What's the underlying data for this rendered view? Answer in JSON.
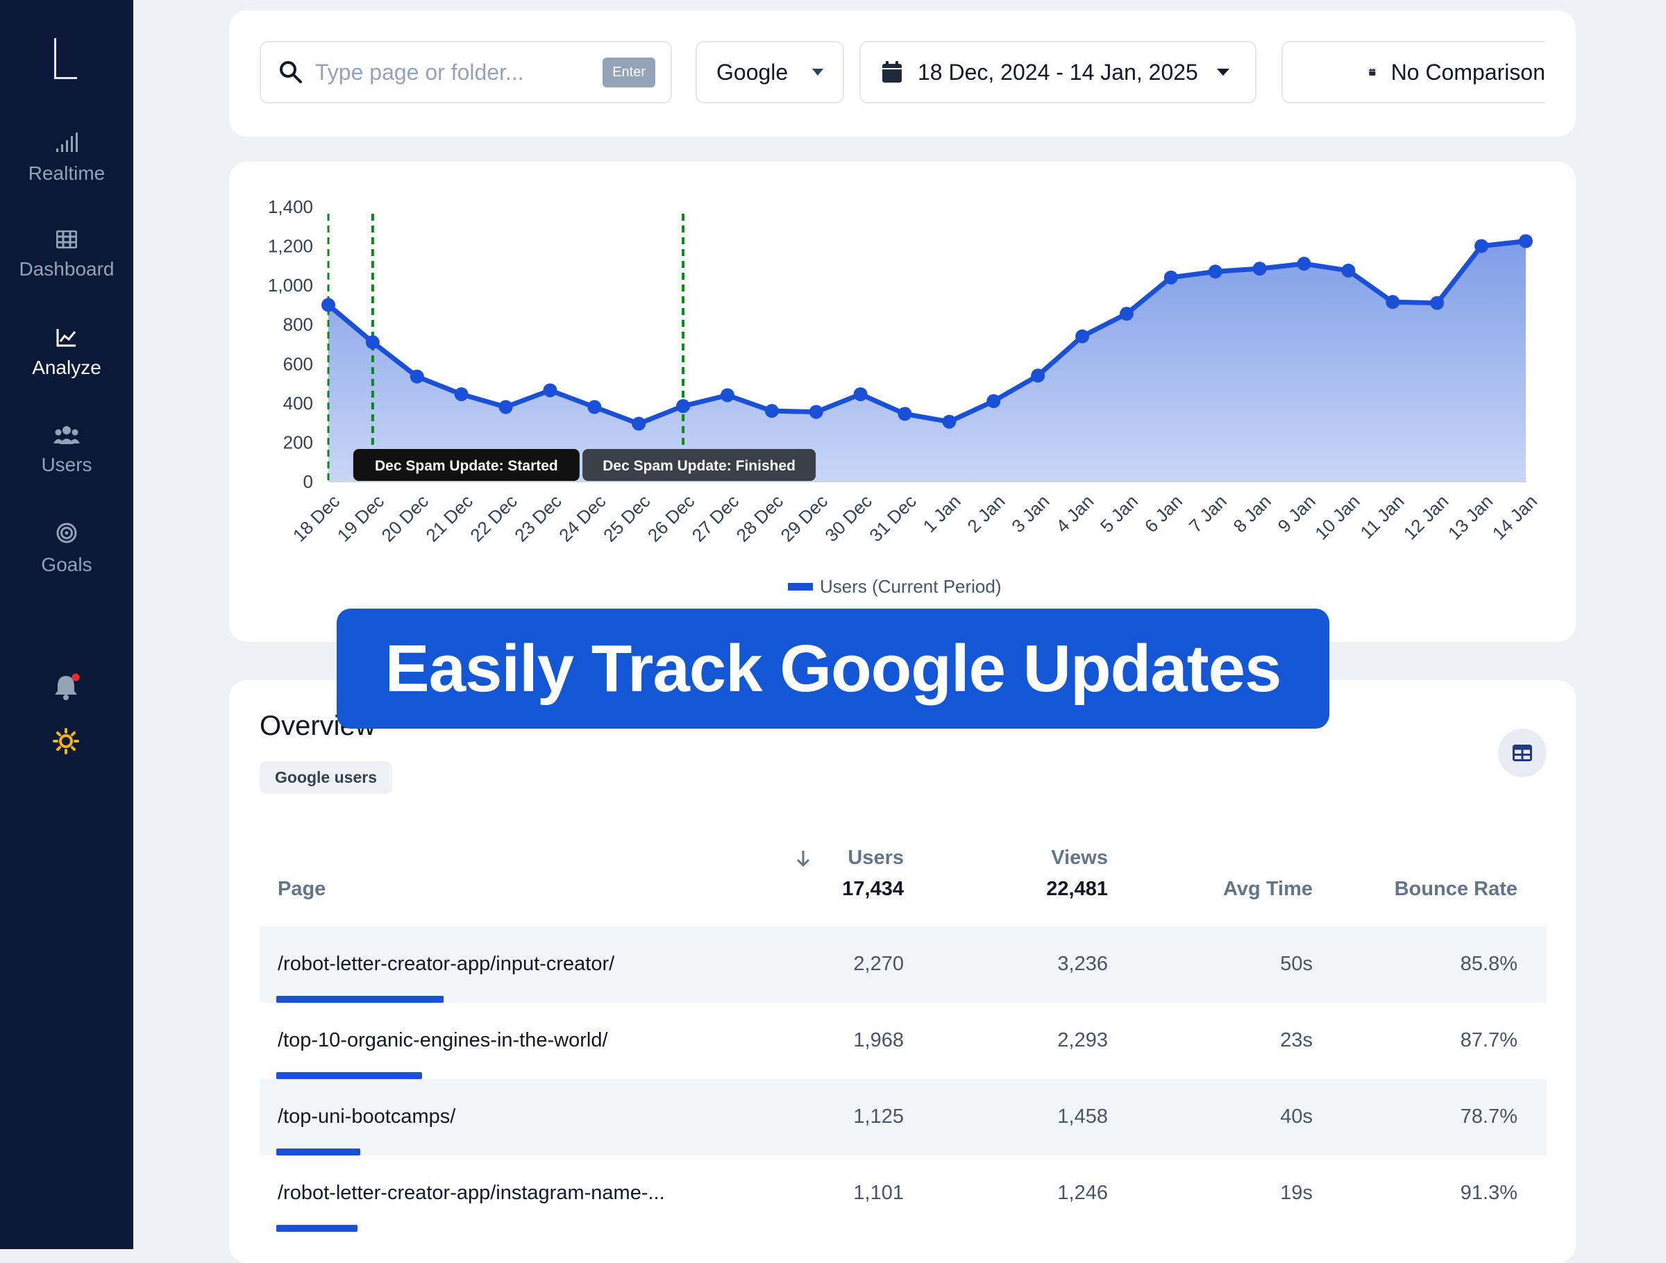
{
  "sidebar": {
    "items": [
      {
        "label": "Realtime",
        "icon": "signal-bars-icon"
      },
      {
        "label": "Dashboard",
        "icon": "grid-icon"
      },
      {
        "label": "Analyze",
        "icon": "line-chart-icon",
        "active": true
      },
      {
        "label": "Users",
        "icon": "users-icon"
      },
      {
        "label": "Goals",
        "icon": "target-icon"
      }
    ],
    "bell_icon": "bell-icon",
    "theme_icon": "sun-icon"
  },
  "toolbar": {
    "search_placeholder": "Type page or folder...",
    "search_badge": "Enter",
    "engine": "Google",
    "date_range": "18 Dec, 2024 - 14 Jan, 2025",
    "comparison": "No Comparison"
  },
  "chart_data": {
    "type": "area",
    "x": [
      "18 Dec",
      "19 Dec",
      "20 Dec",
      "21 Dec",
      "22 Dec",
      "23 Dec",
      "24 Dec",
      "25 Dec",
      "26 Dec",
      "27 Dec",
      "28 Dec",
      "29 Dec",
      "30 Dec",
      "31 Dec",
      "1 Jan",
      "2 Jan",
      "3 Jan",
      "4 Jan",
      "5 Jan",
      "6 Jan",
      "7 Jan",
      "8 Jan",
      "9 Jan",
      "10 Jan",
      "11 Jan",
      "12 Jan",
      "13 Jan",
      "14 Jan"
    ],
    "series": [
      {
        "name": "Users (Current Period)",
        "values": [
          900,
          710,
          535,
          445,
          380,
          465,
          380,
          295,
          385,
          440,
          360,
          355,
          445,
          345,
          305,
          410,
          540,
          740,
          855,
          1040,
          1070,
          1085,
          1110,
          1075,
          915,
          910,
          1200,
          1225
        ],
        "color": "#1a4fd8"
      }
    ],
    "ylim": [
      0,
      1400
    ],
    "yticks": [
      0,
      200,
      400,
      600,
      800,
      1000,
      1200,
      1400
    ],
    "ytick_labels": [
      "0",
      "200",
      "400",
      "600",
      "800",
      "1,000",
      "1,200",
      "1,400"
    ],
    "annotations": [
      {
        "label": "Dec Spam Update: Started",
        "x": "19 Dec"
      },
      {
        "label": "Dec Spam Update: Finished",
        "x": "26 Dec"
      }
    ],
    "legend_position": "bottom"
  },
  "banner": {
    "text": "Easily Track Google Updates"
  },
  "overview": {
    "title": "Overview",
    "chip": "Google users",
    "columns": {
      "page": "Page",
      "users": "Users",
      "views": "Views",
      "avg_time": "Avg Time",
      "bounce": "Bounce Rate"
    },
    "totals": {
      "users": "17,434",
      "views": "22,481"
    },
    "rows": [
      {
        "page": "/robot-letter-creator-app/input-creator/",
        "users": "2,270",
        "views": "3,236",
        "avg_time": "50s",
        "bounce": "85.8%",
        "share": 0.13
      },
      {
        "page": "/top-10-organic-engines-in-the-world/",
        "users": "1,968",
        "views": "2,293",
        "avg_time": "23s",
        "bounce": "87.7%",
        "share": 0.113
      },
      {
        "page": "/top-uni-bootcamps/",
        "users": "1,125",
        "views": "1,458",
        "avg_time": "40s",
        "bounce": "78.7%",
        "share": 0.065
      },
      {
        "page": "/robot-letter-creator-app/instagram-name-...",
        "users": "1,101",
        "views": "1,246",
        "avg_time": "19s",
        "bounce": "91.3%",
        "share": 0.063
      }
    ]
  }
}
